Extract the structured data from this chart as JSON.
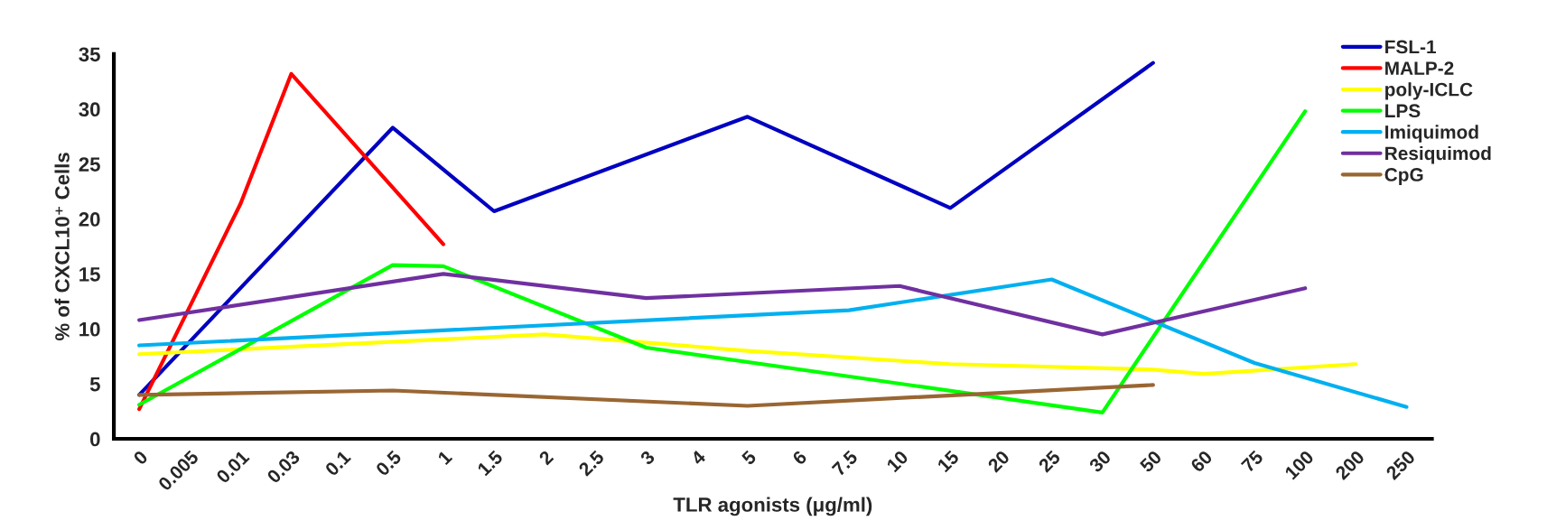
{
  "chart_data": {
    "type": "line",
    "xlabel": "TLR agonists (μg/ml)",
    "ylabel": "% of CXCL10⁺ Cells",
    "categories": [
      "0",
      "0.005",
      "0.01",
      "0.03",
      "0.1",
      "0.5",
      "1",
      "1.5",
      "2",
      "2.5",
      "3",
      "4",
      "5",
      "6",
      "7.5",
      "10",
      "15",
      "20",
      "25",
      "30",
      "50",
      "60",
      "75",
      "100",
      "200",
      "250"
    ],
    "series": [
      {
        "name": "FSL-1",
        "color": "#0000c0",
        "values": [
          4.0,
          null,
          null,
          null,
          null,
          28.3,
          null,
          20.7,
          null,
          null,
          null,
          null,
          29.3,
          null,
          null,
          null,
          21.0,
          null,
          null,
          null,
          34.2,
          null,
          null,
          null,
          null,
          null
        ]
      },
      {
        "name": "MALP-2",
        "color": "#ff0000",
        "values": [
          2.7,
          null,
          21.4,
          33.2,
          null,
          null,
          17.7,
          null,
          null,
          null,
          null,
          null,
          null,
          null,
          null,
          null,
          null,
          null,
          null,
          null,
          null,
          null,
          null,
          null,
          null,
          null
        ]
      },
      {
        "name": "poly-ICLC",
        "color": "#ffff00",
        "values": [
          7.7,
          null,
          null,
          null,
          null,
          null,
          null,
          null,
          9.5,
          null,
          null,
          null,
          8.0,
          null,
          null,
          null,
          6.8,
          null,
          null,
          null,
          6.3,
          5.9,
          null,
          null,
          6.8,
          null
        ]
      },
      {
        "name": "LPS",
        "color": "#00ff00",
        "values": [
          3.1,
          null,
          null,
          null,
          null,
          15.8,
          15.7,
          null,
          null,
          null,
          8.3,
          null,
          null,
          null,
          null,
          null,
          null,
          null,
          null,
          2.4,
          null,
          null,
          null,
          29.8,
          null,
          null
        ]
      },
      {
        "name": "Imiquimod",
        "color": "#00b0f0",
        "values": [
          8.5,
          null,
          null,
          null,
          null,
          null,
          null,
          null,
          null,
          null,
          null,
          null,
          null,
          null,
          11.7,
          null,
          null,
          null,
          14.5,
          null,
          null,
          null,
          6.9,
          null,
          null,
          2.9
        ]
      },
      {
        "name": "Resiquimod",
        "color": "#7030a0",
        "values": [
          10.8,
          null,
          null,
          null,
          null,
          null,
          15.0,
          null,
          null,
          null,
          12.8,
          null,
          null,
          null,
          null,
          13.9,
          null,
          null,
          null,
          9.5,
          null,
          null,
          null,
          13.7,
          null,
          null
        ]
      },
      {
        "name": "CpG",
        "color": "#996633",
        "values": [
          4.0,
          null,
          null,
          null,
          null,
          4.4,
          null,
          null,
          null,
          null,
          null,
          null,
          3.0,
          null,
          null,
          null,
          null,
          null,
          null,
          null,
          4.9,
          null,
          null,
          null,
          null,
          null
        ]
      }
    ],
    "ylim": [
      0,
      35
    ],
    "yticks": [
      0,
      5,
      10,
      15,
      20,
      25,
      30,
      35
    ],
    "grid": false,
    "legend": "top right",
    "marker": "none",
    "line_style": "solid"
  }
}
